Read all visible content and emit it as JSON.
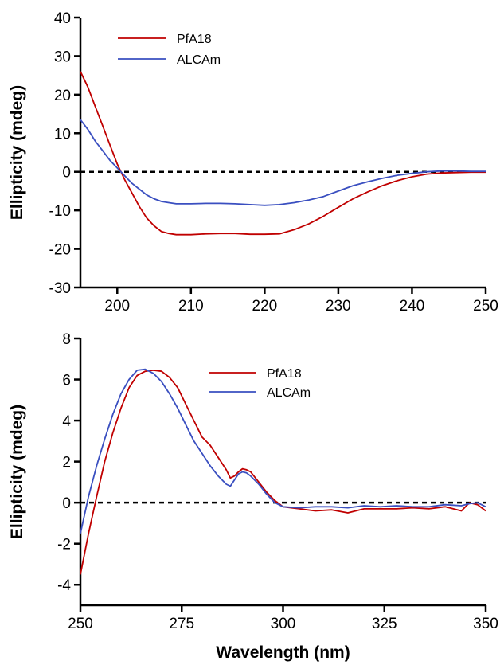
{
  "chart_data": [
    {
      "type": "line",
      "title": "",
      "xlabel": "",
      "ylabel": "Ellipticity (mdeg)",
      "xlim": [
        195,
        250
      ],
      "ylim": [
        -30,
        40
      ],
      "x_ticks": [
        200,
        210,
        220,
        230,
        240,
        250
      ],
      "y_ticks": [
        -30,
        -20,
        -10,
        0,
        10,
        20,
        30,
        40
      ],
      "x_tick_labels": [
        "200",
        "210",
        "220",
        "230",
        "240",
        "250"
      ],
      "y_tick_labels": [
        "-30",
        "-20",
        "-10",
        "0",
        "10",
        "20",
        "30",
        "40"
      ],
      "zero_line": "dashed",
      "grid": false,
      "legend": "top-left",
      "series": [
        {
          "name": "PfA18",
          "color": "#c00000",
          "x": [
            195,
            196,
            197,
            198,
            199,
            200,
            201,
            202,
            203,
            204,
            205,
            206,
            207,
            208,
            210,
            212,
            214,
            216,
            218,
            220,
            222,
            224,
            226,
            228,
            230,
            232,
            234,
            236,
            238,
            240,
            242,
            244,
            246,
            248,
            250
          ],
          "y": [
            26,
            22,
            17,
            12,
            7,
            2,
            -2,
            -5.5,
            -9,
            -12,
            -14,
            -15.5,
            -16,
            -16.3,
            -16.3,
            -16.1,
            -16.0,
            -16.0,
            -16.2,
            -16.2,
            -16.1,
            -15.0,
            -13.5,
            -11.5,
            -9.2,
            -7.0,
            -5.2,
            -3.6,
            -2.3,
            -1.3,
            -0.6,
            -0.3,
            -0.2,
            -0.1,
            -0.1
          ]
        },
        {
          "name": "ALCAm",
          "color": "#3a4fc0",
          "x": [
            195,
            196,
            197,
            198,
            199,
            200,
            201,
            202,
            203,
            204,
            205,
            206,
            207,
            208,
            210,
            212,
            214,
            216,
            218,
            220,
            222,
            224,
            226,
            228,
            230,
            232,
            234,
            236,
            238,
            240,
            242,
            244,
            246,
            248,
            250
          ],
          "y": [
            13.5,
            11,
            8,
            5.5,
            3,
            1,
            -1,
            -3,
            -4.5,
            -6,
            -7,
            -7.7,
            -8.0,
            -8.3,
            -8.3,
            -8.2,
            -8.2,
            -8.3,
            -8.5,
            -8.7,
            -8.5,
            -8.0,
            -7.3,
            -6.4,
            -5.0,
            -3.6,
            -2.6,
            -1.7,
            -0.9,
            -0.4,
            0,
            0.2,
            0.2,
            0.1,
            0.1
          ]
        }
      ]
    },
    {
      "type": "line",
      "title": "",
      "xlabel": "Wavelength (nm)",
      "ylabel": "Ellipticity (mdeg)",
      "xlim": [
        250,
        350
      ],
      "ylim": [
        -5,
        8
      ],
      "x_ticks": [
        250,
        275,
        300,
        325,
        350
      ],
      "y_ticks": [
        -4,
        -2,
        0,
        2,
        4,
        6,
        8
      ],
      "x_tick_labels": [
        "250",
        "275",
        "300",
        "325",
        "350"
      ],
      "y_tick_labels": [
        "-4",
        "-2",
        "0",
        "2",
        "4",
        "6",
        "8"
      ],
      "zero_line": "dashed",
      "grid": false,
      "legend": "top-center",
      "series": [
        {
          "name": "PfA18",
          "color": "#c00000",
          "x": [
            250,
            252,
            254,
            256,
            258,
            260,
            262,
            264,
            266,
            268,
            270,
            272,
            274,
            276,
            278,
            280,
            282,
            284,
            286,
            287,
            288,
            289,
            290,
            291,
            292,
            294,
            296,
            298,
            300,
            304,
            308,
            312,
            316,
            320,
            324,
            328,
            332,
            336,
            340,
            344,
            346,
            348,
            350
          ],
          "y": [
            -3.5,
            -1.5,
            0.3,
            2.0,
            3.4,
            4.6,
            5.6,
            6.2,
            6.4,
            6.45,
            6.4,
            6.1,
            5.6,
            4.8,
            4.0,
            3.2,
            2.8,
            2.2,
            1.6,
            1.2,
            1.3,
            1.5,
            1.65,
            1.6,
            1.5,
            1.0,
            0.5,
            0.1,
            -0.2,
            -0.3,
            -0.4,
            -0.35,
            -0.5,
            -0.3,
            -0.3,
            -0.3,
            -0.25,
            -0.3,
            -0.2,
            -0.4,
            0.0,
            -0.1,
            -0.4
          ]
        },
        {
          "name": "ALCAm",
          "color": "#3a4fc0",
          "x": [
            250,
            252,
            254,
            256,
            258,
            260,
            262,
            264,
            266,
            268,
            270,
            272,
            274,
            276,
            278,
            280,
            282,
            284,
            286,
            287,
            288,
            289,
            290,
            291,
            292,
            294,
            296,
            298,
            300,
            304,
            308,
            312,
            316,
            320,
            324,
            328,
            332,
            336,
            340,
            344,
            346,
            348,
            350
          ],
          "y": [
            -1.5,
            0.3,
            1.8,
            3.1,
            4.3,
            5.3,
            6.0,
            6.45,
            6.5,
            6.3,
            5.9,
            5.3,
            4.6,
            3.8,
            3.0,
            2.4,
            1.8,
            1.3,
            0.9,
            0.8,
            1.1,
            1.4,
            1.5,
            1.45,
            1.3,
            0.9,
            0.4,
            0.0,
            -0.2,
            -0.25,
            -0.2,
            -0.2,
            -0.25,
            -0.15,
            -0.2,
            -0.15,
            -0.2,
            -0.2,
            -0.1,
            -0.15,
            -0.05,
            0.0,
            -0.2
          ]
        }
      ]
    }
  ]
}
